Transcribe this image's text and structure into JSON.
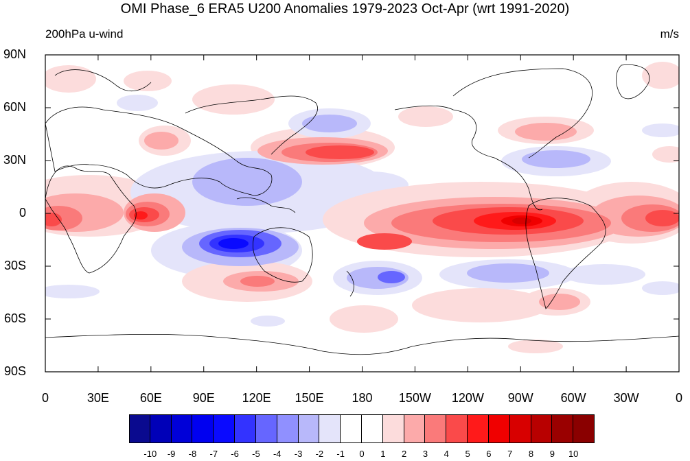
{
  "title": "OMI Phase_6 ERA5 U200 Anomalies 1979-2023 Oct-Apr (wrt 1991-2020)",
  "subtitle_left": "200hPa u-wind",
  "subtitle_right": "m/s",
  "lat_labels": [
    "90N",
    "60N",
    "30N",
    "0",
    "30S",
    "60S",
    "90S"
  ],
  "lon_labels": [
    "0",
    "30E",
    "60E",
    "90E",
    "120E",
    "150E",
    "180",
    "150W",
    "120W",
    "90W",
    "60W",
    "30W",
    "0"
  ],
  "colorbar": {
    "ticks": [
      "-10",
      "-9",
      "-8",
      "-7",
      "-6",
      "-5",
      "-4",
      "-3",
      "-2",
      "-1",
      "0",
      "1",
      "2",
      "3",
      "4",
      "5",
      "6",
      "7",
      "8",
      "9",
      "10"
    ],
    "colors": [
      "#0a0a8f",
      "#0000b8",
      "#0000d8",
      "#0000f0",
      "#0a0aff",
      "#3333ff",
      "#6666ff",
      "#9090ff",
      "#b8b8fa",
      "#e4e4fa",
      "#ffffff",
      "#ffffff",
      "#fcdcdc",
      "#fcaaaa",
      "#fa7a7a",
      "#fa4a4a",
      "#ff1a1a",
      "#f00000",
      "#d80000",
      "#b80000",
      "#9a0000",
      "#8a0000"
    ]
  },
  "map_data": {
    "projection": "cylindrical-equidistant",
    "variable": "U200 anomaly",
    "lon_range": [
      0,
      360
    ],
    "lat_range": [
      -90,
      90
    ]
  }
}
